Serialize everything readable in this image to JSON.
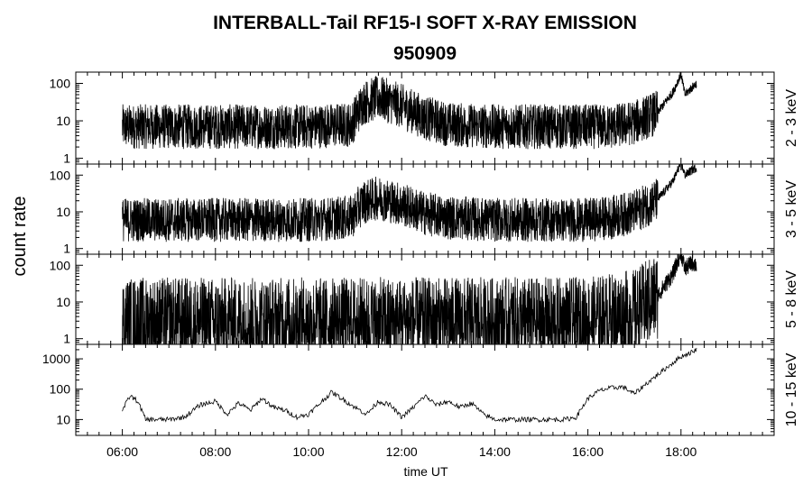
{
  "chart_data": {
    "type": "line",
    "title": "INTERBALL-Tail RF15-I SOFT X-RAY EMISSION",
    "subtitle": "950909",
    "xlabel": "time UT",
    "ylabel": "count rate",
    "x_ticks": [
      "06:00",
      "08:00",
      "10:00",
      "12:00",
      "14:00",
      "16:00",
      "18:00"
    ],
    "xlim": [
      "05:00",
      "20:00"
    ],
    "y_scale": "log",
    "panels": [
      {
        "band": "2 - 3 keV",
        "ylim": [
          0.7,
          200
        ],
        "y_ticks": [
          "1",
          "10",
          "100"
        ],
        "x": [
          "06:00",
          "06:30",
          "07:00",
          "08:00",
          "09:00",
          "10:00",
          "10:55",
          "11:10",
          "11:30",
          "12:00",
          "12:30",
          "13:00",
          "14:00",
          "15:00",
          "16:00",
          "16:30",
          "17:00",
          "17:30",
          "17:50",
          "18:00",
          "18:05",
          "18:15",
          "18:20"
        ],
        "values": [
          7,
          7,
          7,
          7,
          7,
          7,
          8,
          30,
          42,
          25,
          12,
          8,
          7,
          7,
          7,
          7,
          9,
          17,
          60,
          180,
          50,
          80,
          100
        ]
      },
      {
        "band": "3 - 5 keV",
        "ylim": [
          0.7,
          200
        ],
        "y_ticks": [
          "1",
          "10",
          "100"
        ],
        "x": [
          "06:00",
          "06:30",
          "07:00",
          "08:00",
          "09:00",
          "10:00",
          "10:55",
          "11:10",
          "11:30",
          "12:00",
          "12:30",
          "13:00",
          "14:00",
          "15:00",
          "16:00",
          "16:30",
          "17:00",
          "17:30",
          "17:50",
          "18:00",
          "18:05",
          "18:15",
          "18:20"
        ],
        "values": [
          6,
          6,
          6,
          6,
          6,
          6,
          7,
          18,
          24,
          16,
          9,
          7,
          6,
          6,
          6,
          7,
          10,
          22,
          70,
          220,
          100,
          140,
          160
        ]
      },
      {
        "band": "5 - 8 keV",
        "ylim": [
          0.7,
          200
        ],
        "y_ticks": [
          "1",
          "10",
          "100"
        ],
        "x": [
          "06:00",
          "06:30",
          "07:00",
          "08:00",
          "09:00",
          "10:00",
          "11:00",
          "12:00",
          "13:00",
          "14:00",
          "15:00",
          "16:00",
          "16:30",
          "17:00",
          "17:30",
          "17:50",
          "18:00",
          "18:05",
          "18:15",
          "18:20"
        ],
        "values": [
          3,
          3,
          3,
          3,
          3,
          3,
          3,
          3,
          3,
          3,
          3,
          3,
          4,
          5,
          15,
          60,
          220,
          80,
          120,
          100
        ]
      },
      {
        "band": "10 - 15 keV",
        "ylim": [
          3,
          3000
        ],
        "y_ticks": [
          "10",
          "100",
          "1000"
        ],
        "x": [
          "06:00",
          "06:10",
          "06:20",
          "06:30",
          "07:00",
          "07:20",
          "07:40",
          "08:00",
          "08:15",
          "08:30",
          "08:45",
          "09:00",
          "09:15",
          "09:30",
          "09:45",
          "10:00",
          "10:15",
          "10:30",
          "10:45",
          "11:00",
          "11:15",
          "11:30",
          "11:45",
          "12:00",
          "12:15",
          "12:30",
          "12:45",
          "13:00",
          "13:15",
          "13:30",
          "13:45",
          "14:00",
          "14:30",
          "15:00",
          "15:30",
          "15:45",
          "16:00",
          "16:15",
          "16:30",
          "16:45",
          "17:00",
          "17:15",
          "17:30",
          "17:45",
          "18:00",
          "18:15",
          "18:20"
        ],
        "values": [
          20,
          60,
          40,
          10,
          10,
          12,
          30,
          40,
          15,
          35,
          20,
          50,
          25,
          20,
          12,
          15,
          35,
          80,
          45,
          25,
          15,
          40,
          30,
          12,
          25,
          60,
          30,
          40,
          25,
          35,
          15,
          10,
          10,
          10,
          10,
          12,
          50,
          90,
          110,
          120,
          70,
          150,
          300,
          600,
          1200,
          1700,
          2100
        ]
      }
    ]
  }
}
